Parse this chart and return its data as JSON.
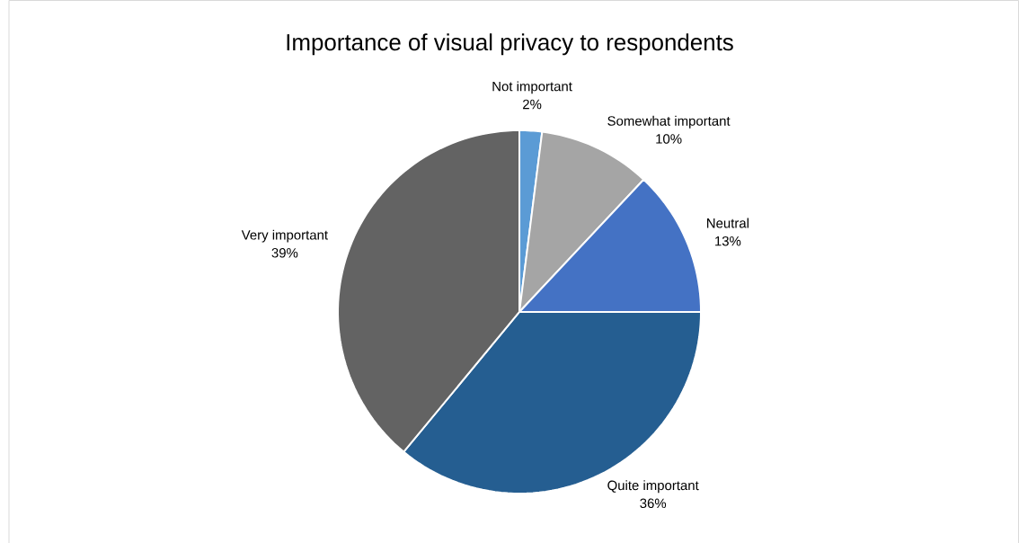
{
  "chart_data": {
    "type": "pie",
    "title": "Importance of visual privacy to respondents",
    "categories": [
      "Not important",
      "Somewhat important",
      "Neutral",
      "Quite important",
      "Very important"
    ],
    "values": [
      2,
      10,
      13,
      36,
      39
    ],
    "value_labels": [
      "2%",
      "10%",
      "13%",
      "36%",
      "39%"
    ],
    "colors": [
      "#5b9bd5",
      "#a5a5a5",
      "#4472c4",
      "#255e91",
      "#636363"
    ]
  }
}
